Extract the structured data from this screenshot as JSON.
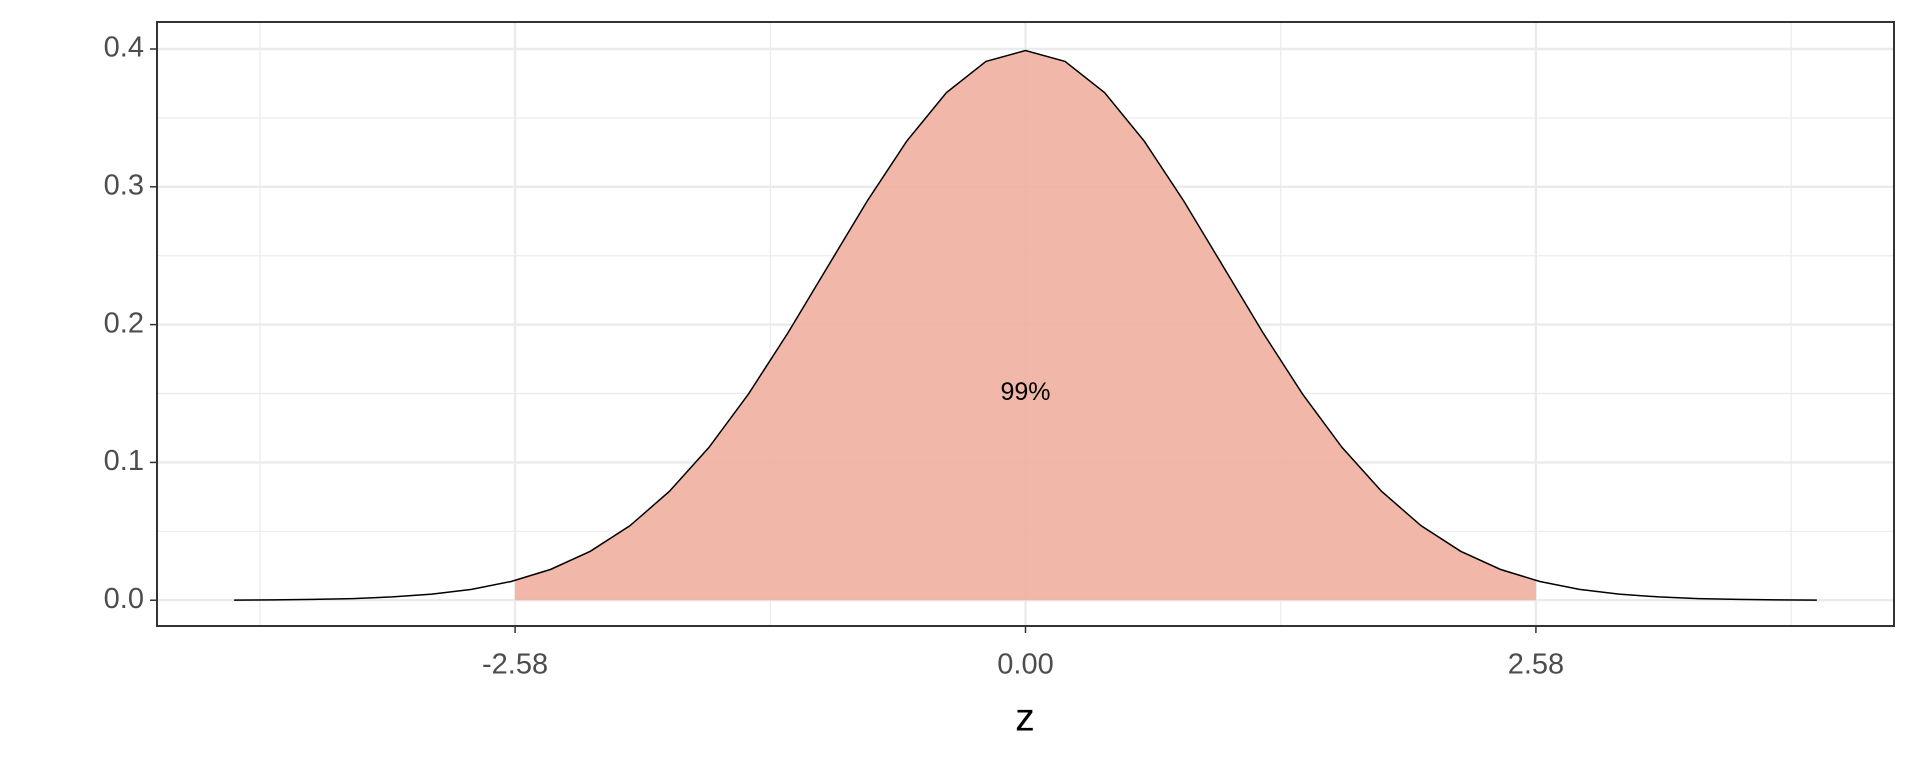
{
  "chart_data": {
    "type": "area",
    "x_label": "z",
    "x": [
      -4,
      -3.8,
      -3.6,
      -3.4,
      -3.2,
      -3,
      -2.8,
      -2.6,
      -2.4,
      -2.2,
      -2,
      -1.8,
      -1.6,
      -1.4,
      -1.2,
      -1,
      -0.8,
      -0.6,
      -0.4,
      -0.2,
      0,
      0.2,
      0.4,
      0.6,
      0.8,
      1,
      1.2,
      1.4,
      1.6,
      1.8,
      2,
      2.2,
      2.4,
      2.6,
      2.8,
      3,
      3.2,
      3.4,
      3.6,
      3.8,
      4
    ],
    "values": [
      0.0001,
      0.0003,
      0.0006,
      0.0012,
      0.0024,
      0.0044,
      0.0079,
      0.0136,
      0.0224,
      0.0355,
      0.054,
      0.079,
      0.1109,
      0.1497,
      0.1942,
      0.242,
      0.2897,
      0.3332,
      0.3683,
      0.391,
      0.3989,
      0.391,
      0.3683,
      0.3332,
      0.2897,
      0.242,
      0.1942,
      0.1497,
      0.1109,
      0.079,
      0.054,
      0.0355,
      0.0224,
      0.0136,
      0.0079,
      0.0044,
      0.0024,
      0.0012,
      0.0006,
      0.0003,
      0.0001
    ],
    "line_color": "#000000",
    "area": {
      "color": "#efb0a0",
      "x": [
        -2.58,
        -2.4,
        -2.2,
        -2,
        -1.8,
        -1.6,
        -1.4,
        -1.2,
        -1,
        -0.8,
        -0.6,
        -0.4,
        -0.2,
        0,
        0.2,
        0.4,
        0.6,
        0.8,
        1,
        1.2,
        1.4,
        1.6,
        1.8,
        2,
        2.2,
        2.4,
        2.58
      ],
      "values": [
        0.0143,
        0.0224,
        0.0355,
        0.054,
        0.079,
        0.1109,
        0.1497,
        0.1942,
        0.242,
        0.2897,
        0.3332,
        0.3683,
        0.391,
        0.3989,
        0.391,
        0.3683,
        0.3332,
        0.2897,
        0.242,
        0.1942,
        0.1497,
        0.1109,
        0.079,
        0.054,
        0.0355,
        0.0224,
        0.0143
      ]
    },
    "annotation": {
      "text": "99%",
      "x": 0,
      "y": 0.15
    },
    "xlim": [
      -4.39,
      4.39
    ],
    "ylim": [
      -0.0187,
      0.4196
    ],
    "xticks": [
      -2.58,
      {
        "value": 0,
        "label": "0.00"
      },
      2.58
    ],
    "yticks": [
      {
        "value": 0,
        "label": "0.0"
      },
      0.1,
      0.2,
      0.3,
      0.4
    ],
    "minor_xticks": [
      -3.87,
      -1.29,
      1.29,
      3.87
    ],
    "minor_yticks": [
      0.05,
      0.15,
      0.25,
      0.35
    ],
    "grid": true
  }
}
